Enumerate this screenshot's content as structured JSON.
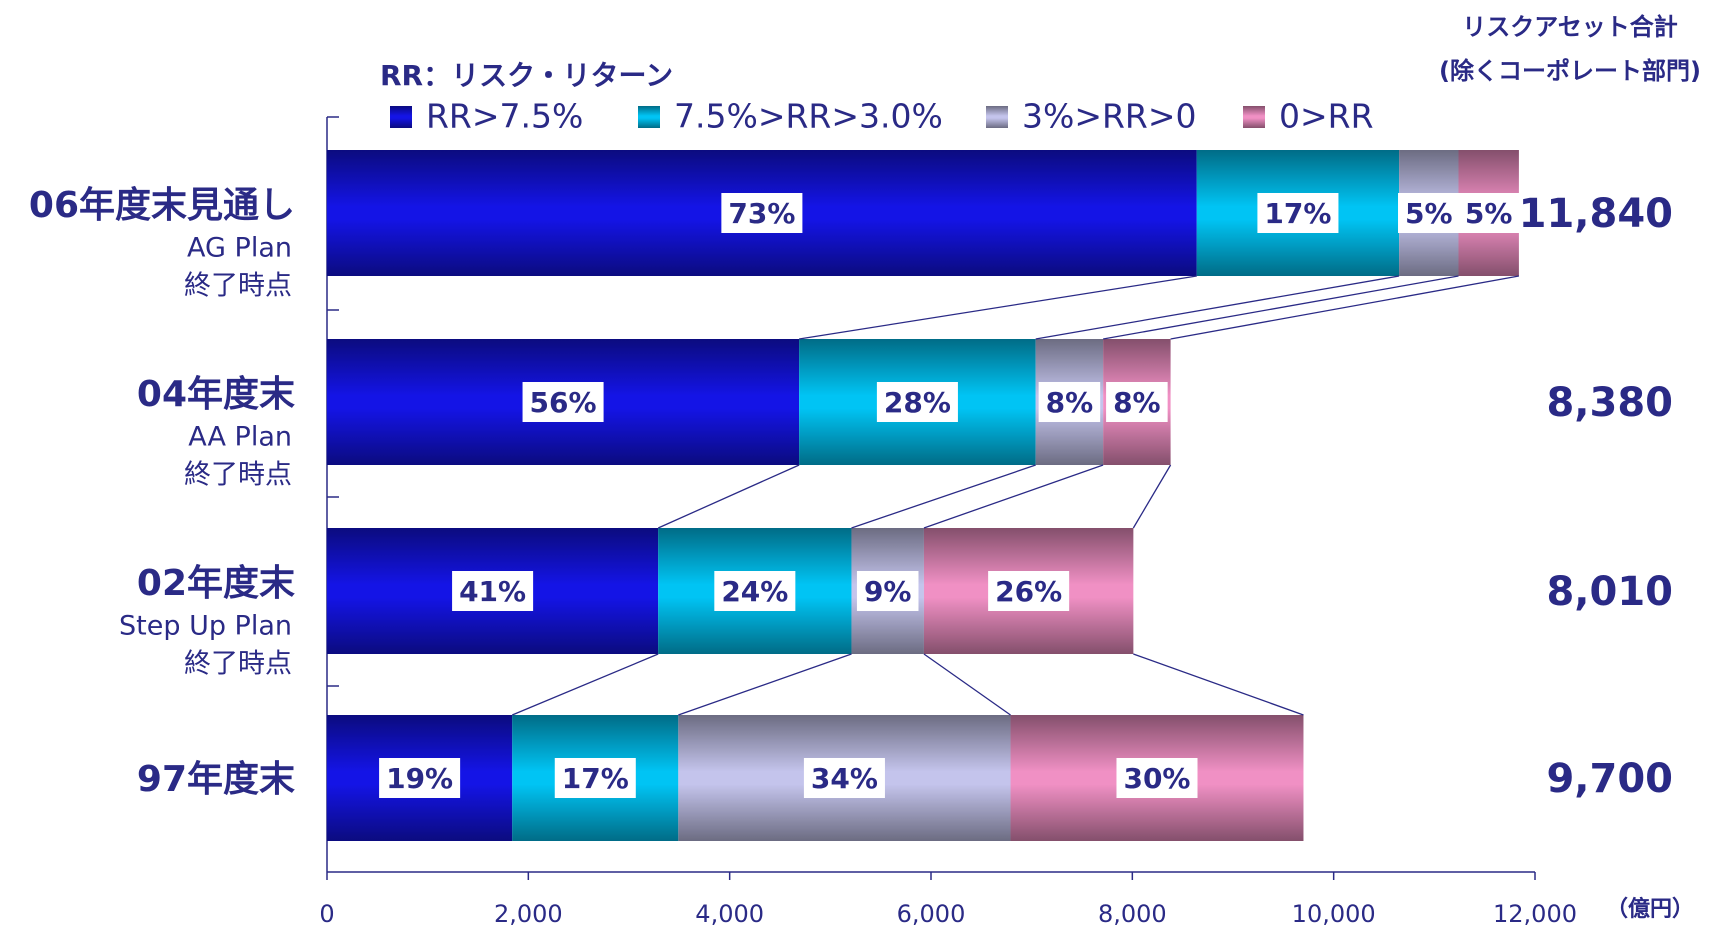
{
  "chart_data": {
    "type": "stacked-bar-horizontal",
    "legend_title": "RR：リスク・リターン",
    "categories": [
      "06年度末見通し",
      "04年度末",
      "02年度末",
      "97年度末"
    ],
    "category_sublabels": [
      [
        "AG Plan",
        "終了時点"
      ],
      [
        "AA Plan",
        "終了時点"
      ],
      [
        "Step Up Plan",
        "終了時点"
      ],
      []
    ],
    "series": [
      {
        "name": "RR>7.5%",
        "color": "#1414e6",
        "values": [
          8640,
          4690,
          3290,
          1840
        ],
        "share_labels": [
          "73%",
          "56%",
          "41%",
          "19%"
        ]
      },
      {
        "name": "7.5%>RR>3.0%",
        "color": "#00c4f4",
        "values": [
          2010,
          2350,
          1920,
          1650
        ],
        "share_labels": [
          "17%",
          "28%",
          "24%",
          "17%"
        ]
      },
      {
        "name": "3%>RR>0",
        "color": "#c4c4ec",
        "values": [
          590,
          670,
          720,
          3300
        ],
        "share_labels": [
          "5%",
          "8%",
          "9%",
          "34%"
        ]
      },
      {
        "name": "0>RR",
        "color": "#f090c4",
        "values": [
          600,
          670,
          2080,
          2910
        ],
        "share_labels": [
          "5%",
          "8%",
          "26%",
          "30%"
        ]
      }
    ],
    "totals_title": [
      "リスクアセット合計",
      "(除くコーポレート部門)"
    ],
    "totals": [
      11840,
      8380,
      8010,
      9700
    ],
    "total_labels": [
      "11,840",
      "8,380",
      "8,010",
      "9,700"
    ],
    "x_unit": "（億円）",
    "xlim": [
      0,
      12000
    ],
    "xticks": [
      0,
      {
        "value": 2000,
        "label": "2,000"
      },
      {
        "value": 4000,
        "label": "4,000"
      },
      {
        "value": 6000,
        "label": "6,000"
      },
      {
        "value": 8000,
        "label": "8,000"
      },
      {
        "value": 10000,
        "label": "10,000"
      },
      {
        "value": 12000,
        "label": "12,000"
      }
    ]
  }
}
